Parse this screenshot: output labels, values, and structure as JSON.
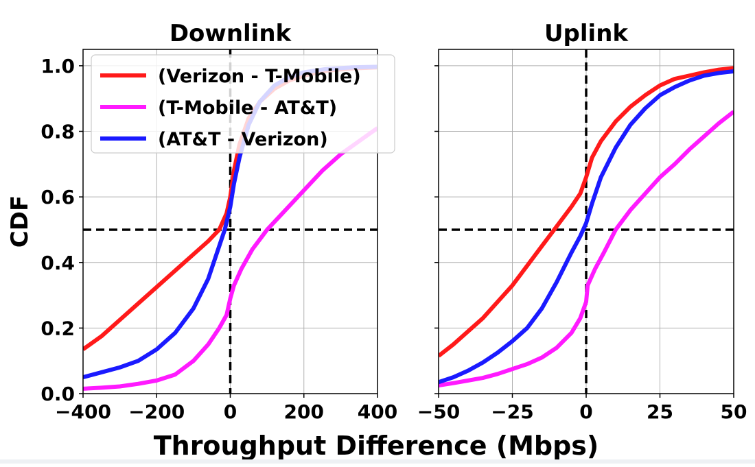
{
  "chart_data": [
    {
      "type": "line",
      "title": "Downlink",
      "ylabel": "CDF",
      "xlim": [
        -400,
        400
      ],
      "ylim": [
        0,
        1.05
      ],
      "xticks": [
        -400,
        -200,
        0,
        200,
        400
      ],
      "xtick_labels": [
        "−400",
        "−200",
        "0",
        "200",
        "400"
      ],
      "yticks": [
        0.0,
        0.2,
        0.4,
        0.6,
        0.8,
        1.0
      ],
      "ytick_labels": [
        "0.0",
        "0.2",
        "0.4",
        "0.6",
        "0.8",
        "1.0"
      ],
      "grid": true,
      "reference_lines": {
        "x": 0,
        "y": 0.5
      },
      "legend": {
        "position": "top-left"
      },
      "series": [
        {
          "name": "(Verizon - T-Mobile)",
          "color": "#ff1a1a",
          "points": [
            [
              -400,
              0.135
            ],
            [
              -350,
              0.175
            ],
            [
              -300,
              0.225
            ],
            [
              -250,
              0.275
            ],
            [
              -200,
              0.325
            ],
            [
              -150,
              0.375
            ],
            [
              -100,
              0.425
            ],
            [
              -60,
              0.465
            ],
            [
              -30,
              0.5
            ],
            [
              -10,
              0.55
            ],
            [
              0,
              0.6
            ],
            [
              10,
              0.68
            ],
            [
              25,
              0.76
            ],
            [
              50,
              0.84
            ],
            [
              80,
              0.89
            ],
            [
              120,
              0.93
            ],
            [
              160,
              0.955
            ],
            [
              200,
              0.97
            ],
            [
              260,
              0.985
            ],
            [
              330,
              0.992
            ],
            [
              400,
              0.995
            ]
          ]
        },
        {
          "name": "(T-Mobile - AT&T)",
          "color": "#ff1aff",
          "points": [
            [
              -400,
              0.015
            ],
            [
              -350,
              0.018
            ],
            [
              -300,
              0.022
            ],
            [
              -250,
              0.03
            ],
            [
              -200,
              0.04
            ],
            [
              -150,
              0.058
            ],
            [
              -100,
              0.1
            ],
            [
              -60,
              0.15
            ],
            [
              -30,
              0.2
            ],
            [
              -10,
              0.24
            ],
            [
              0,
              0.29
            ],
            [
              10,
              0.33
            ],
            [
              30,
              0.38
            ],
            [
              60,
              0.44
            ],
            [
              100,
              0.5
            ],
            [
              150,
              0.56
            ],
            [
              200,
              0.62
            ],
            [
              250,
              0.68
            ],
            [
              300,
              0.73
            ],
            [
              350,
              0.77
            ],
            [
              400,
              0.81
            ]
          ]
        },
        {
          "name": "(AT&T - Verizon)",
          "color": "#1a1aff",
          "points": [
            [
              -400,
              0.05
            ],
            [
              -350,
              0.065
            ],
            [
              -300,
              0.08
            ],
            [
              -250,
              0.1
            ],
            [
              -200,
              0.135
            ],
            [
              -150,
              0.185
            ],
            [
              -100,
              0.26
            ],
            [
              -60,
              0.35
            ],
            [
              -30,
              0.45
            ],
            [
              -15,
              0.5
            ],
            [
              0,
              0.57
            ],
            [
              10,
              0.64
            ],
            [
              25,
              0.72
            ],
            [
              50,
              0.82
            ],
            [
              80,
              0.89
            ],
            [
              120,
              0.94
            ],
            [
              160,
              0.965
            ],
            [
              200,
              0.98
            ],
            [
              260,
              0.99
            ],
            [
              330,
              0.995
            ],
            [
              400,
              0.997
            ]
          ]
        }
      ]
    },
    {
      "type": "line",
      "title": "Uplink",
      "xlim": [
        -50,
        50
      ],
      "ylim": [
        0,
        1.05
      ],
      "xticks": [
        -50,
        -25,
        0,
        25,
        50
      ],
      "xtick_labels": [
        "−50",
        "−25",
        "0",
        "25",
        "50"
      ],
      "yticks": [
        0.0,
        0.2,
        0.4,
        0.6,
        0.8,
        1.0
      ],
      "grid": true,
      "reference_lines": {
        "x": 0,
        "y": 0.5
      },
      "series": [
        {
          "name": "(Verizon - T-Mobile)",
          "color": "#ff1a1a",
          "points": [
            [
              -50,
              0.115
            ],
            [
              -45,
              0.15
            ],
            [
              -40,
              0.19
            ],
            [
              -35,
              0.23
            ],
            [
              -30,
              0.28
            ],
            [
              -25,
              0.33
            ],
            [
              -20,
              0.39
            ],
            [
              -15,
              0.45
            ],
            [
              -10,
              0.51
            ],
            [
              -5,
              0.57
            ],
            [
              -2,
              0.61
            ],
            [
              0,
              0.66
            ],
            [
              2,
              0.72
            ],
            [
              5,
              0.77
            ],
            [
              10,
              0.83
            ],
            [
              15,
              0.875
            ],
            [
              20,
              0.91
            ],
            [
              25,
              0.94
            ],
            [
              30,
              0.96
            ],
            [
              35,
              0.97
            ],
            [
              40,
              0.98
            ],
            [
              45,
              0.988
            ],
            [
              50,
              0.993
            ]
          ]
        },
        {
          "name": "(T-Mobile - AT&T)",
          "color": "#ff1aff",
          "points": [
            [
              -50,
              0.025
            ],
            [
              -45,
              0.032
            ],
            [
              -40,
              0.04
            ],
            [
              -35,
              0.048
            ],
            [
              -30,
              0.06
            ],
            [
              -25,
              0.075
            ],
            [
              -20,
              0.09
            ],
            [
              -15,
              0.11
            ],
            [
              -10,
              0.14
            ],
            [
              -5,
              0.185
            ],
            [
              -2,
              0.23
            ],
            [
              0,
              0.28
            ],
            [
              0.5,
              0.33
            ],
            [
              3,
              0.38
            ],
            [
              6,
              0.43
            ],
            [
              10,
              0.5
            ],
            [
              15,
              0.56
            ],
            [
              20,
              0.61
            ],
            [
              25,
              0.66
            ],
            [
              30,
              0.7
            ],
            [
              35,
              0.745
            ],
            [
              40,
              0.785
            ],
            [
              45,
              0.825
            ],
            [
              50,
              0.86
            ]
          ]
        },
        {
          "name": "(AT&T - Verizon)",
          "color": "#1a1aff",
          "points": [
            [
              -50,
              0.035
            ],
            [
              -45,
              0.05
            ],
            [
              -40,
              0.07
            ],
            [
              -35,
              0.095
            ],
            [
              -30,
              0.125
            ],
            [
              -25,
              0.16
            ],
            [
              -20,
              0.2
            ],
            [
              -15,
              0.26
            ],
            [
              -10,
              0.34
            ],
            [
              -5,
              0.43
            ],
            [
              -2,
              0.48
            ],
            [
              0,
              0.52
            ],
            [
              2,
              0.58
            ],
            [
              5,
              0.66
            ],
            [
              10,
              0.75
            ],
            [
              15,
              0.82
            ],
            [
              20,
              0.87
            ],
            [
              25,
              0.91
            ],
            [
              30,
              0.935
            ],
            [
              35,
              0.955
            ],
            [
              40,
              0.97
            ],
            [
              45,
              0.978
            ],
            [
              50,
              0.983
            ]
          ]
        }
      ]
    }
  ],
  "shared": {
    "xlabel": "Throughput Difference (Mbps)"
  }
}
